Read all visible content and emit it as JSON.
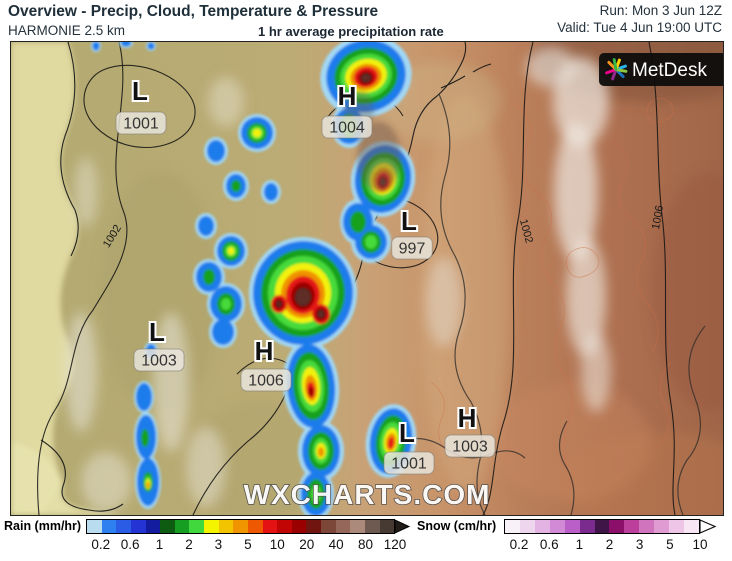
{
  "header": {
    "title": "Overview - Precip, Cloud, Temperature & Pressure",
    "model": "HARMONIE 2.5 km",
    "subtitle": "1 hr average precipitation rate",
    "run": "Run: Mon 3 Jun 12Z",
    "valid": "Valid: Tue 4 Jun 19:00 UTC"
  },
  "map": {
    "watermark": "WXCHARTS.COM",
    "logo": {
      "text": "MetDesk"
    },
    "pressure_centers": [
      {
        "type": "L",
        "value": "1001"
      },
      {
        "type": "H",
        "value": "1004"
      },
      {
        "type": "L",
        "value": "997"
      },
      {
        "type": "L",
        "value": "1003"
      },
      {
        "type": "H",
        "value": "1006"
      },
      {
        "type": "L",
        "value": "1001"
      },
      {
        "type": "H",
        "value": "1003"
      }
    ],
    "isobar_labels": [
      "1002",
      "1002",
      "1006"
    ]
  },
  "legend": {
    "rain": {
      "label": "Rain (mm/hr)",
      "ticks": [
        "0.2",
        "0.6",
        "1",
        "2",
        "3",
        "5",
        "10",
        "20",
        "40",
        "80",
        "120"
      ],
      "colors": [
        "#b9ddee",
        "#2e80f0",
        "#2b5ce6",
        "#2434d4",
        "#131b9e",
        "#0d5c12",
        "#159e22",
        "#40d83c",
        "#f4f400",
        "#f2c400",
        "#f09400",
        "#ee5800",
        "#e41212",
        "#c10505",
        "#9a0000",
        "#701510",
        "#7c4638",
        "#95675a",
        "#ab8a7c",
        "#6e5a50",
        "#473a33"
      ],
      "arrow_color": "#221c18"
    },
    "snow": {
      "label": "Snow (cm/hr)",
      "ticks": [
        "0.2",
        "0.6",
        "1",
        "2",
        "3",
        "5",
        "10"
      ],
      "colors": [
        "#f8f1f8",
        "#efd6ef",
        "#e3b4e3",
        "#d28ad6",
        "#ba5ec8",
        "#7b2a8e",
        "#3f1547",
        "#8c1069",
        "#bb3f9b",
        "#cf74bd",
        "#df9bd2",
        "#eec5e6",
        "#f8e6f4"
      ],
      "arrow_color": "#ffffff"
    }
  }
}
